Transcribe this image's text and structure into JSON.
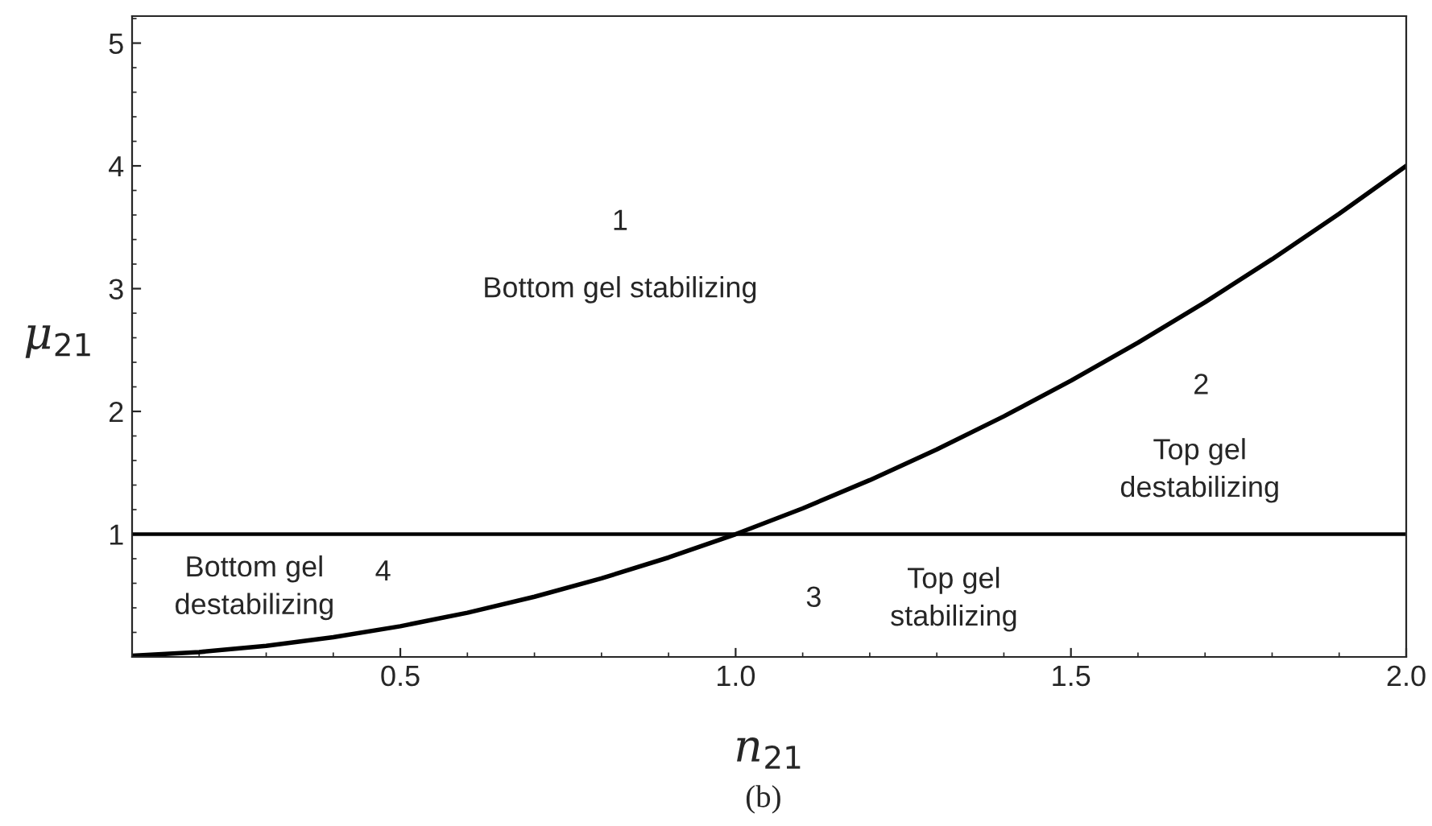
{
  "chart_data": {
    "type": "line",
    "xlabel": "n$_{21}$",
    "ylabel": "μ$_{21}$",
    "x": [
      0.1,
      0.2,
      0.3,
      0.4,
      0.5,
      0.6,
      0.7,
      0.8,
      0.9,
      1.0,
      1.1,
      1.2,
      1.3,
      1.4,
      1.5,
      1.6,
      1.7,
      1.8,
      1.9,
      2.0
    ],
    "series": [
      {
        "color": "#000000",
        "values": [
          0.01,
          0.04,
          0.09,
          0.16,
          0.25,
          0.36,
          0.49,
          0.64,
          0.81,
          1.0,
          1.21,
          1.44,
          1.69,
          1.96,
          2.25,
          2.56,
          2.89,
          3.24,
          3.61,
          4.0
        ]
      }
    ],
    "ref_lines": [
      {
        "axis": "y",
        "value": 1,
        "color": "#000000"
      }
    ],
    "xlim": [
      0.1,
      2.0
    ],
    "xticks": [
      0.5,
      {
        "value": 1.0,
        "label": "1.0"
      },
      1.5,
      {
        "value": 2.0,
        "label": "2.0"
      }
    ],
    "ylim": [
      0,
      5.22
    ],
    "yticks": [
      1,
      2,
      3,
      4,
      5
    ],
    "grid": false,
    "legend": false,
    "marker": "none",
    "line_style": "solid",
    "annotations": [
      "1",
      "Bottom gel stabilizing",
      "2",
      "Top gel\ndestabilizing",
      "3",
      "Top gel\nstabilizing",
      "4",
      "Bottom gel\ndestabilizing",
      "(b)"
    ]
  }
}
